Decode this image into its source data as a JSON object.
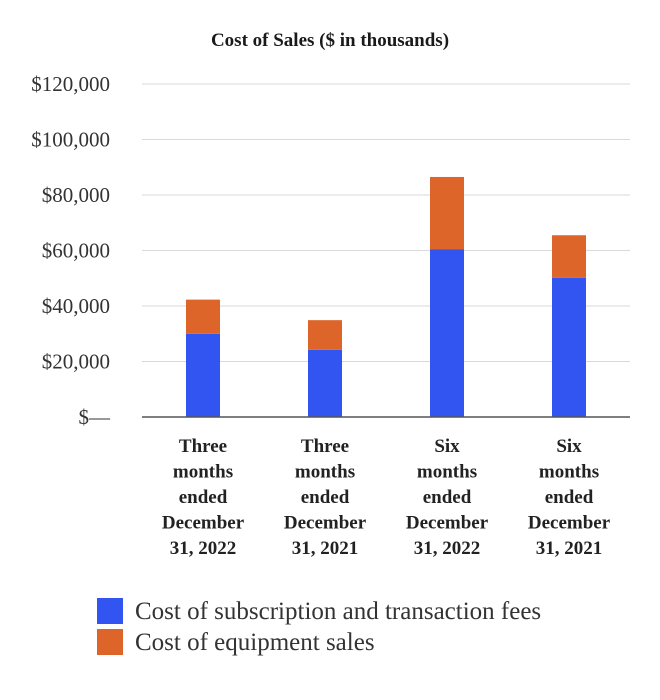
{
  "chart_data": {
    "type": "bar",
    "stacked": true,
    "title": "Cost of Sales ($ in thousands)",
    "categories": [
      [
        "Three",
        "months",
        "ended",
        "December",
        "31, 2022"
      ],
      [
        "Three",
        "months",
        "ended",
        "December",
        "31, 2021"
      ],
      [
        "Six",
        "months",
        "ended",
        "December",
        "31, 2022"
      ],
      [
        "Six",
        "months",
        "ended",
        "December",
        "31, 2021"
      ]
    ],
    "series": [
      {
        "name": "Cost of subscription and transaction fees",
        "color": "#3254f0",
        "values": [
          30000,
          24200,
          60500,
          50200
        ]
      },
      {
        "name": "Cost of equipment sales",
        "color": "#dd652a",
        "values": [
          12300,
          10700,
          26000,
          15300
        ]
      }
    ],
    "ylim": [
      0,
      120000
    ],
    "yticks": [
      0,
      20000,
      40000,
      60000,
      80000,
      100000,
      120000
    ],
    "ytick_labels": [
      "$—",
      "$20,000",
      "$40,000",
      "$60,000",
      "$80,000",
      "$100,000",
      "$120,000"
    ],
    "grid": true,
    "legend_position": "bottom-left",
    "xlabel": "",
    "ylabel": ""
  }
}
